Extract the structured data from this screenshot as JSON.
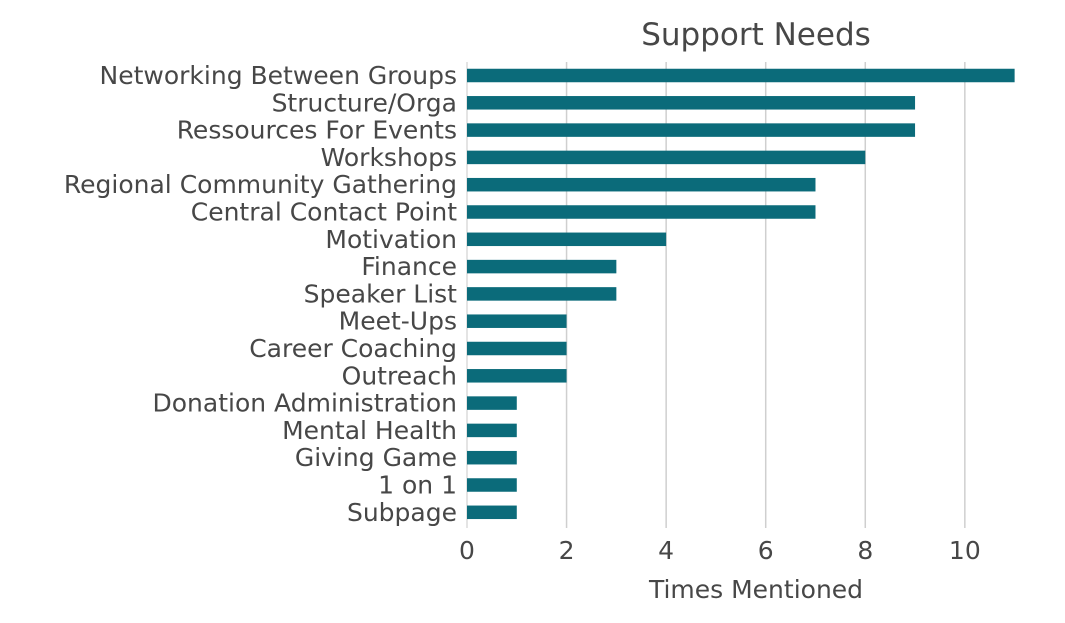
{
  "chart_data": {
    "type": "bar",
    "orientation": "horizontal",
    "title": "Support Needs",
    "xlabel": "Times Mentioned",
    "ylabel": "",
    "categories": [
      "Networking Between Groups",
      "Structure/Orga",
      "Ressources For Events",
      "Workshops",
      "Regional Community Gathering",
      "Central Contact Point",
      "Motivation",
      "Finance",
      "Speaker List",
      "Meet-Ups",
      "Career Coaching",
      "Outreach",
      "Donation Administration",
      "Mental Health",
      "Giving Game",
      "1 on 1",
      "Subpage"
    ],
    "values": [
      11,
      9,
      9,
      8,
      7,
      7,
      4,
      3,
      3,
      2,
      2,
      2,
      1,
      1,
      1,
      1,
      1
    ],
    "xticks": [
      "0",
      "2",
      "4",
      "6",
      "8",
      "10"
    ],
    "xlim": [
      0,
      11.55
    ],
    "grid": "vertical",
    "legend": "none",
    "bar_color": "#0b6b7a"
  }
}
